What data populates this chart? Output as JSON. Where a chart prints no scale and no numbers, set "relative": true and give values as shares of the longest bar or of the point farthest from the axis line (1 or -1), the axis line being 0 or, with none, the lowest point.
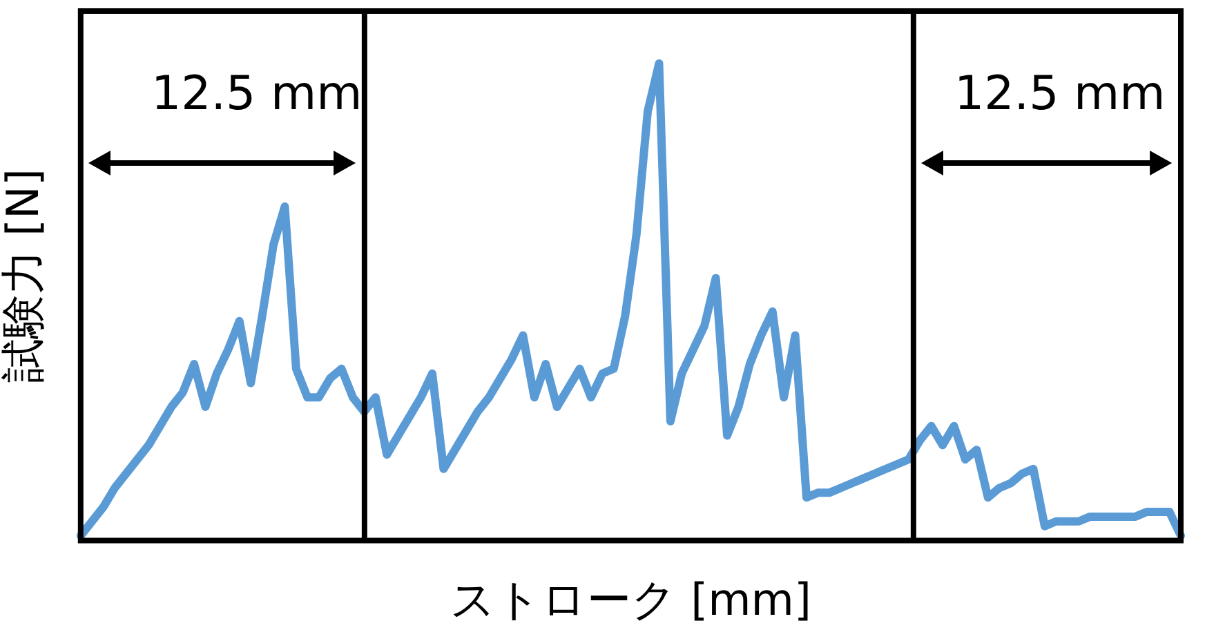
{
  "chart_data": {
    "type": "line",
    "relative": true,
    "xlabel": "ストローク [mm]",
    "ylabel": "試験力 [N]",
    "grid": false,
    "legend": false,
    "marker": "none",
    "line_style": "solid",
    "categories": [
      null,
      null,
      null,
      null,
      null,
      null,
      null,
      null,
      null,
      null,
      null,
      null,
      null,
      null,
      null,
      null,
      null,
      null,
      null,
      null,
      null,
      null,
      null,
      null,
      null,
      null,
      null,
      null,
      null,
      null,
      null,
      null,
      null,
      null,
      null,
      null,
      null,
      null,
      null,
      null,
      null,
      null,
      null,
      null,
      null,
      null,
      null,
      null,
      null,
      null,
      null,
      null,
      null,
      null,
      null,
      null,
      null,
      null,
      null,
      null,
      null,
      null,
      null,
      null,
      null,
      null,
      null,
      null,
      null,
      null,
      null,
      null,
      null,
      null,
      null,
      null,
      null,
      null,
      null,
      null,
      null,
      null,
      null,
      null,
      null,
      null,
      null,
      null,
      null,
      null,
      null,
      null,
      null,
      null,
      null,
      null,
      null,
      null
    ],
    "series": [
      {
        "color": "#5b9bd5",
        "values": [
          0.01,
          0.04,
          0.07,
          0.11,
          0.14,
          0.17,
          0.2,
          0.24,
          0.28,
          0.31,
          0.37,
          0.28,
          0.35,
          0.4,
          0.46,
          0.33,
          0.47,
          0.62,
          0.7,
          0.36,
          0.3,
          0.3,
          0.34,
          0.36,
          0.3,
          0.27,
          0.3,
          0.18,
          0.22,
          0.26,
          0.3,
          0.35,
          0.15,
          0.19,
          0.23,
          0.27,
          0.3,
          0.34,
          0.38,
          0.43,
          0.3,
          0.37,
          0.28,
          0.32,
          0.36,
          0.3,
          0.35,
          0.36,
          0.47,
          0.64,
          0.9,
          1,
          0.25,
          0.35,
          0.4,
          0.45,
          0.55,
          0.22,
          0.28,
          0.37,
          0.43,
          0.48,
          0.3,
          0.43,
          0.09,
          0.1,
          0.1,
          0.11,
          0.12,
          0.13,
          0.14,
          0.15,
          0.16,
          0.17,
          0.21,
          0.24,
          0.2,
          0.24,
          0.17,
          0.19,
          0.09,
          0.11,
          0.12,
          0.14,
          0.15,
          0.03,
          0.04,
          0.04,
          0.04,
          0.05,
          0.05,
          0.05,
          0.05,
          0.05,
          0.06,
          0.06,
          0.06,
          0.01
        ]
      }
    ],
    "annotations": [
      "12.5 mm",
      "12.5 mm"
    ]
  }
}
